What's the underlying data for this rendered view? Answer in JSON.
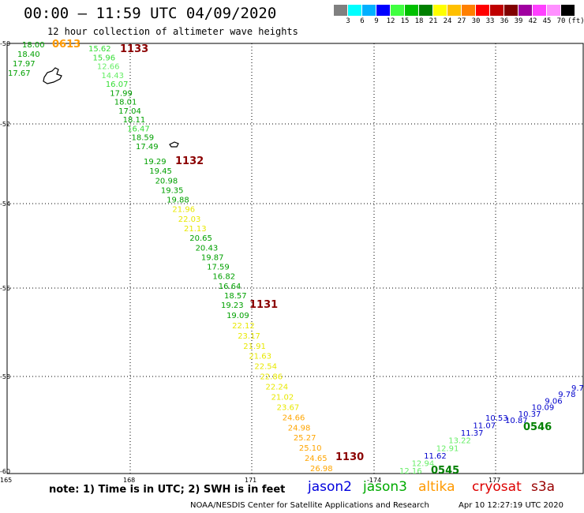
{
  "header": {
    "title": "00:00 — 11:59 UTC 04/09/2020",
    "subtitle": "12 hour collection of altimeter wave heights"
  },
  "color_scale": {
    "unit": "(ft)",
    "colors": [
      "#808080",
      "#00ffff",
      "#00b0ff",
      "#0000ff",
      "#40ff40",
      "#00c000",
      "#008000",
      "#ffff00",
      "#ffc000",
      "#ff8000",
      "#ff0000",
      "#c00000",
      "#800000",
      "#a000a0",
      "#ff40ff",
      "#ff90ff",
      "#000000"
    ],
    "labels": [
      "3",
      "6",
      "9",
      "12",
      "15",
      "18",
      "21",
      "24",
      "27",
      "30",
      "33",
      "36",
      "39",
      "42",
      "45",
      "70"
    ]
  },
  "axes": {
    "lat_labels": [
      "-50",
      "-52",
      "-54",
      "-56",
      "-58",
      "-60"
    ],
    "lon_labels": [
      "165",
      "168",
      "171",
      "-174",
      "177"
    ]
  },
  "tracks": [
    {
      "label": "0613",
      "color": "#ff9900",
      "values": [
        {
          "v": "18.00",
          "c": "#00a000"
        },
        {
          "v": "18.40",
          "c": "#00a000"
        },
        {
          "v": "17.97",
          "c": "#00a000"
        },
        {
          "v": "17.67",
          "c": "#00a000"
        }
      ]
    },
    {
      "label": "1133",
      "color": "#8b0000",
      "values": [
        {
          "v": "15.62",
          "c": "#33dd33"
        },
        {
          "v": "15.96",
          "c": "#33dd33"
        },
        {
          "v": "12.66",
          "c": "#66ee66"
        },
        {
          "v": "14.43",
          "c": "#66ee66"
        },
        {
          "v": "16.07",
          "c": "#33dd33"
        },
        {
          "v": "17.99",
          "c": "#00a000"
        },
        {
          "v": "18.01",
          "c": "#00a000"
        },
        {
          "v": "17.04",
          "c": "#00a000"
        },
        {
          "v": "18.11",
          "c": "#00a000"
        },
        {
          "v": "16.47",
          "c": "#33dd33"
        },
        {
          "v": "18.59",
          "c": "#00a000"
        },
        {
          "v": "17.49",
          "c": "#00a000"
        }
      ]
    },
    {
      "label": "1132",
      "color": "#8b0000",
      "values": [
        {
          "v": "19.29",
          "c": "#00a000"
        },
        {
          "v": "19.45",
          "c": "#00a000"
        },
        {
          "v": "20.98",
          "c": "#00a000"
        },
        {
          "v": "19.35",
          "c": "#00a000"
        },
        {
          "v": "19.88",
          "c": "#00a000"
        },
        {
          "v": "21.96",
          "c": "#e8e800"
        },
        {
          "v": "22.03",
          "c": "#e8e800"
        },
        {
          "v": "21.13",
          "c": "#e8e800"
        },
        {
          "v": "20.65",
          "c": "#00a000"
        },
        {
          "v": "20.43",
          "c": "#00a000"
        },
        {
          "v": "19.87",
          "c": "#00a000"
        },
        {
          "v": "17.59",
          "c": "#00a000"
        },
        {
          "v": "16.82",
          "c": "#00a000"
        },
        {
          "v": "16.64",
          "c": "#00a000"
        },
        {
          "v": "18.57",
          "c": "#00a000"
        }
      ]
    },
    {
      "label": "1131",
      "color": "#8b0000",
      "values": [
        {
          "v": "19.23",
          "c": "#00a000"
        },
        {
          "v": "19.09",
          "c": "#00a000"
        },
        {
          "v": "22.12",
          "c": "#e8e800"
        },
        {
          "v": "23.17",
          "c": "#e8e800"
        },
        {
          "v": "21.91",
          "c": "#e8e800"
        },
        {
          "v": "21.63",
          "c": "#e8e800"
        },
        {
          "v": "22.54",
          "c": "#e8e800"
        },
        {
          "v": "22.86",
          "c": "#e8e800"
        },
        {
          "v": "22.24",
          "c": "#e8e800"
        },
        {
          "v": "21.02",
          "c": "#e8e800"
        },
        {
          "v": "23.67",
          "c": "#e8e800"
        },
        {
          "v": "24.66",
          "c": "#ffa500"
        },
        {
          "v": "24.98",
          "c": "#ffa500"
        },
        {
          "v": "25.27",
          "c": "#ffa500"
        },
        {
          "v": "25.10",
          "c": "#ffa500"
        },
        {
          "v": "24.65",
          "c": "#ffa500"
        },
        {
          "v": "26.98",
          "c": "#ffa500"
        }
      ]
    },
    {
      "label": "1130",
      "color": "#8b0000",
      "values": []
    },
    {
      "label": "0545",
      "color": "#008000",
      "values": [
        {
          "v": "12.16",
          "c": "#66ee66"
        },
        {
          "v": "12.94",
          "c": "#66ee66"
        },
        {
          "v": "11.62",
          "c": "#0000cc"
        },
        {
          "v": "12.91",
          "c": "#66ee66"
        },
        {
          "v": "13.22",
          "c": "#66ee66"
        },
        {
          "v": "11.37",
          "c": "#0000cc"
        },
        {
          "v": "11.07",
          "c": "#0000cc"
        },
        {
          "v": "10.53",
          "c": "#0000cc"
        }
      ]
    },
    {
      "label": "0546",
      "color": "#008000",
      "values": [
        {
          "v": "10.87",
          "c": "#0000cc"
        },
        {
          "v": "10.37",
          "c": "#0000cc"
        },
        {
          "v": "10.09",
          "c": "#0000cc"
        },
        {
          "v": "9.06",
          "c": "#0000cc"
        },
        {
          "v": "9.78",
          "c": "#0000cc"
        },
        {
          "v": "9.7",
          "c": "#0000cc"
        }
      ]
    }
  ],
  "footer": {
    "note": "note: 1) Time is in UTC; 2) SWH is in feet",
    "missions": [
      {
        "name": "jason2",
        "color": "#0000dd"
      },
      {
        "name": "jason3",
        "color": "#00aa00"
      },
      {
        "name": "altika",
        "color": "#ff9900"
      },
      {
        "name": "cryosat",
        "color": "#dd0000"
      },
      {
        "name": "s3a",
        "color": "#990000"
      }
    ],
    "credit": "NOAA/NESDIS Center for Satellite Applications and Research",
    "timestamp": "Apr 10 12:27:19 UTC 2020"
  }
}
